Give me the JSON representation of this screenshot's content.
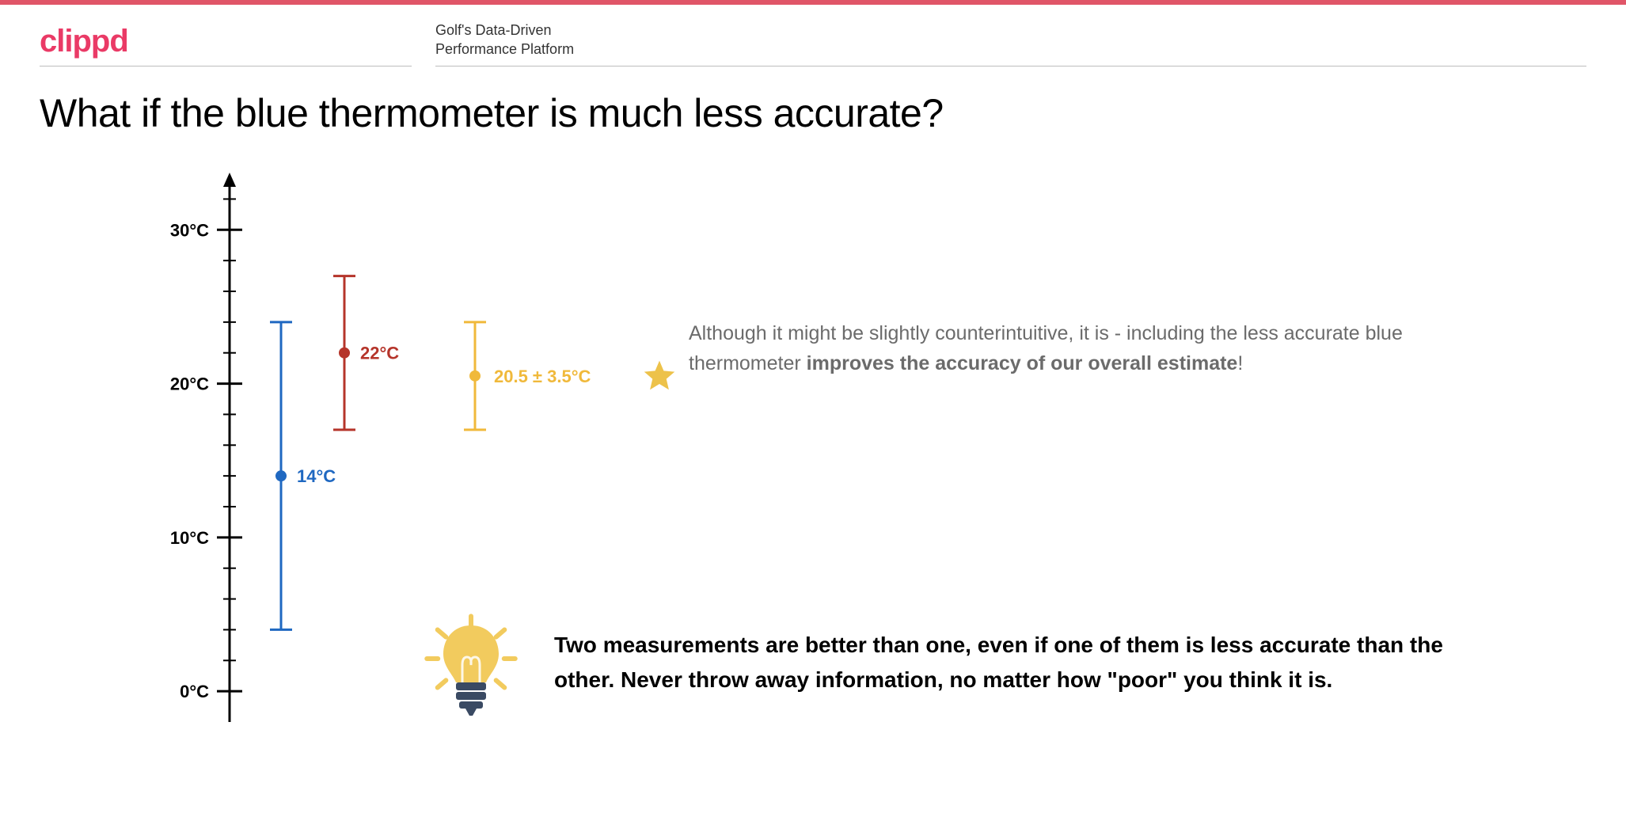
{
  "topbar_color": "#e05568",
  "brand": {
    "text": "clippd",
    "color": "#ea3a66"
  },
  "tagline_line1": "Golf's Data-Driven",
  "tagline_line2": "Performance Platform",
  "title": "What if the blue thermometer is much less accurate?",
  "chart": {
    "axis_color": "#000000",
    "y_min": -2,
    "y_max": 33,
    "major_ticks": [
      {
        "value": 0,
        "label": "0°C"
      },
      {
        "value": 10,
        "label": "10°C"
      },
      {
        "value": 20,
        "label": "20°C"
      },
      {
        "value": 30,
        "label": "30°C"
      }
    ],
    "minor_tick_step": 2,
    "minor_tick_start": 0,
    "minor_tick_end": 32,
    "tick_label_fontsize": 22,
    "tick_label_fontweight": "700",
    "series": [
      {
        "id": "blue",
        "x": 175,
        "center": 14,
        "low": 4,
        "high": 24,
        "color": "#1f68c1",
        "label": "14°C",
        "label_dx": 20
      },
      {
        "id": "red",
        "x": 255,
        "center": 22,
        "low": 17,
        "high": 27,
        "color": "#b5342a",
        "label": "22°C",
        "label_dx": 20
      },
      {
        "id": "yellow",
        "x": 420,
        "center": 20.5,
        "low": 17,
        "high": 24,
        "color": "#f0b93b",
        "label": "20.5 ± 3.5°C",
        "label_dx": 24
      }
    ],
    "series_label_fontsize": 22,
    "series_label_fontweight": "700",
    "errorbar_width": 3,
    "cap_halfwidth": 14,
    "dot_radius": 7
  },
  "star": {
    "color": "#edc24a",
    "attach_series": "yellow",
    "dx": 210,
    "size": 46
  },
  "explain_prefix": "Although it might be slightly counterintuitive, it is - including the less accurate blue thermometer ",
  "explain_strong": "improves the accuracy of our overall estimate",
  "explain_suffix": "!",
  "insight": "Two measurements are better than one, even if one of them is less accurate than the other. Never throw away information, no matter how \"poor\" you think it is.",
  "bulb": {
    "glass": "#f2cb5e",
    "base": "#3a4a63",
    "ray": "#f2cb5e"
  }
}
